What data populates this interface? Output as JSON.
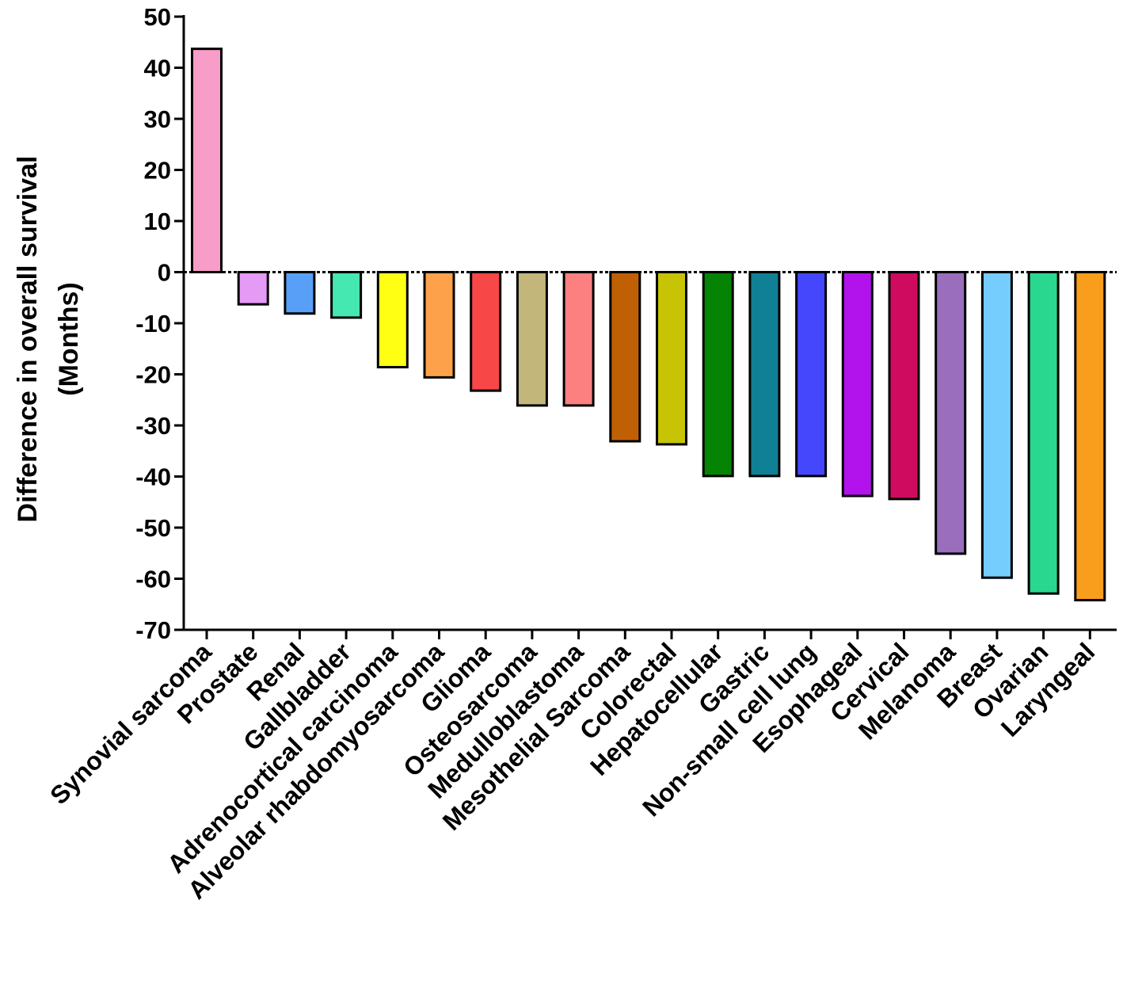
{
  "chart_data": {
    "type": "bar",
    "title": "",
    "xlabel": "",
    "ylabel_lines": [
      "Difference in overall survival",
      "(Months)"
    ],
    "ylim": [
      -70,
      50
    ],
    "yticks": [
      50,
      40,
      30,
      20,
      10,
      0,
      -10,
      -20,
      -30,
      -40,
      -50,
      -60,
      -70
    ],
    "categories": [
      "Synovial sarcoma",
      "Prostate",
      "Renal",
      "Gallbladder",
      "Adrenocortical carcinoma",
      "Alveolar rhabdomyosarcoma",
      "Glioma",
      "Osteosarcoma",
      "Medulloblastoma",
      "Mesothelial Sarcoma",
      "Colorectal",
      "Hepatocellular",
      "Gastric",
      "Non-small cell lung",
      "Esophageal",
      "Cervical",
      "Melanoma",
      "Breast",
      "Ovarian",
      "Laryngeal"
    ],
    "values": [
      43.7,
      -6.3,
      -8.1,
      -8.9,
      -18.6,
      -20.6,
      -23.2,
      -26.1,
      -26.1,
      -33.1,
      -33.7,
      -39.9,
      -39.9,
      -39.9,
      -43.8,
      -44.4,
      -55.1,
      -59.8,
      -62.9,
      -64.2
    ],
    "colors": [
      "#f89cc8",
      "#e59af5",
      "#58a0f7",
      "#44e8b0",
      "#ffff14",
      "#fda24b",
      "#f74747",
      "#c3b67a",
      "#fd8080",
      "#c06005",
      "#c6c404",
      "#058305",
      "#0f8095",
      "#4547fd",
      "#b212ec",
      "#cf0b60",
      "#9b6ebd",
      "#74cdfd",
      "#2ad78e",
      "#f89d1c"
    ]
  }
}
